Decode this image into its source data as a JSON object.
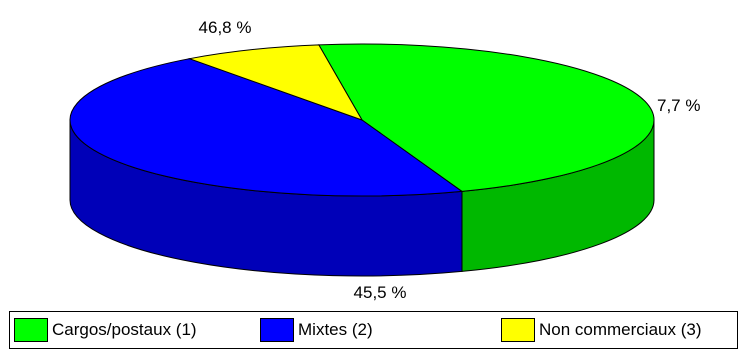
{
  "chart_data": {
    "type": "pie",
    "style": "3d",
    "slices": [
      {
        "name": "Cargos/postaux  (1)",
        "value": 46.8,
        "label": "46,8 %",
        "color": "#00ff00"
      },
      {
        "name": "Mixtes (2)",
        "value": 45.5,
        "label": "45,5 %",
        "color": "#0000ff"
      },
      {
        "name": "Non commerciaux (3)",
        "value": 7.7,
        "label": "7,7 %",
        "color": "#ffff00"
      }
    ],
    "legend_position": "bottom"
  }
}
